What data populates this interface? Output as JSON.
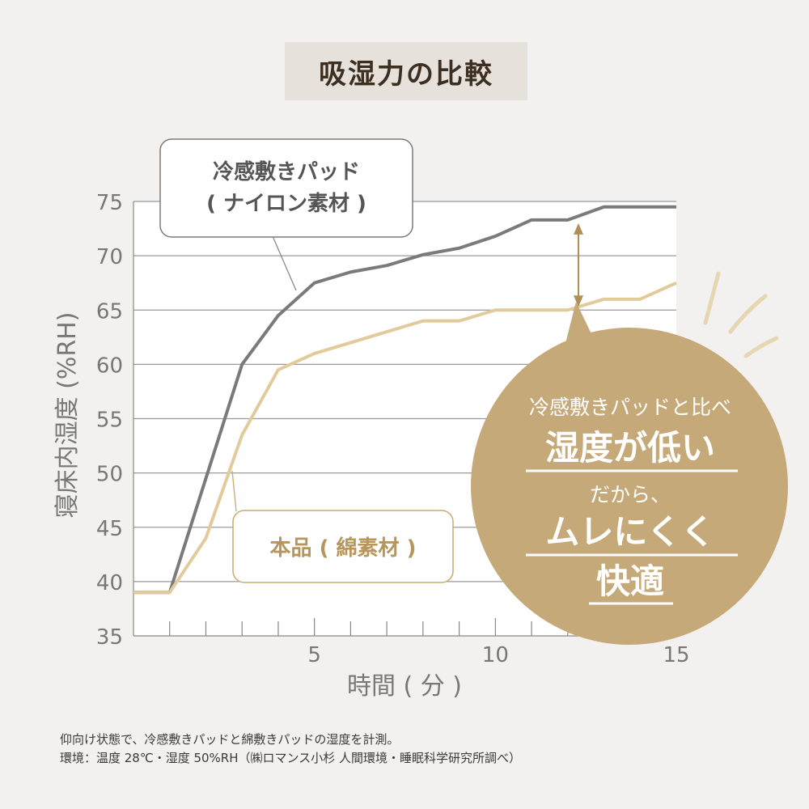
{
  "title": "吸湿力の比較",
  "chart_data": {
    "type": "line",
    "xlabel": "時間 ( 分 )",
    "ylabel": "寝床内湿度 (%RH)",
    "xlim": [
      0,
      15
    ],
    "ylim": [
      35,
      75
    ],
    "x_ticks": [
      5,
      10,
      15
    ],
    "y_ticks": [
      35,
      40,
      45,
      50,
      55,
      60,
      65,
      70,
      75
    ],
    "grid": "horizontal",
    "series": [
      {
        "name_lines": [
          "冷感敷きパッド",
          "( ナイロン素材 )"
        ],
        "color": "#7a7a7a",
        "x": [
          0,
          1,
          2,
          3,
          4,
          5,
          6,
          7,
          8,
          9,
          10,
          11,
          12,
          13,
          14,
          15
        ],
        "y": [
          39,
          39,
          49.5,
          60,
          64.5,
          67.5,
          68.5,
          69.1,
          70.1,
          70.7,
          71.8,
          73.3,
          73.3,
          74.5,
          74.5,
          74.5
        ]
      },
      {
        "name_lines": [
          "本品 ( 綿素材 )"
        ],
        "color": "#e2cb9a",
        "x": [
          0,
          1,
          2,
          3,
          4,
          5,
          6,
          7,
          8,
          9,
          10,
          11,
          12,
          13,
          14,
          15
        ],
        "y": [
          39,
          39,
          44,
          53.5,
          59.5,
          61,
          62,
          63,
          64,
          64,
          65,
          65,
          65,
          66,
          66,
          67.5
        ]
      }
    ],
    "callout": {
      "line1": "冷感敷きパッドと比べ",
      "line2": "湿度が低い",
      "line3": "だから、",
      "line4": "ムレにくく",
      "line5": "快適"
    },
    "colors": {
      "callout_bg": "#c6a978",
      "arrow": "#b08f55",
      "label_border_gold": "#c8aa6e"
    }
  },
  "footnote": {
    "line1": "仰向け状態で、冷感敷きパッドと綿敷きパッドの湿度を計測。",
    "line2": "環境：温度 28℃・湿度 50%RH（㈱ロマンス小杉 人間環境・睡眠科学研究所調べ）"
  }
}
